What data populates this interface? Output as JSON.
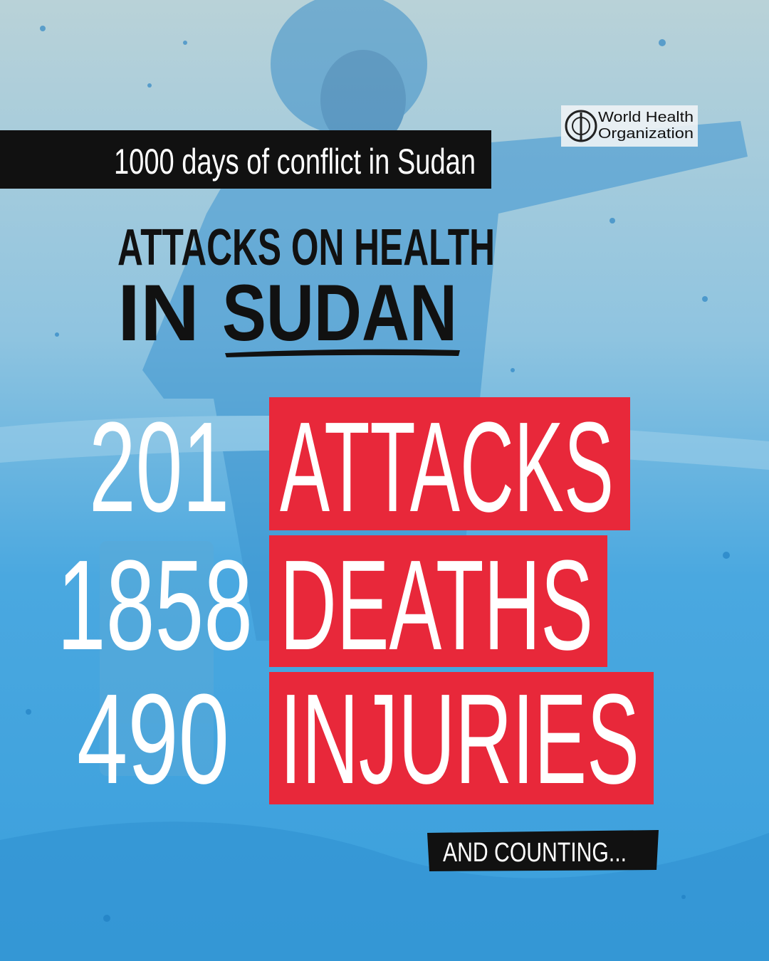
{
  "logo": {
    "line1": "World Health",
    "line2": "Organization"
  },
  "banner": "1000 days of conflict in Sudan",
  "headline": {
    "line1": "ATTACKS ON HEALTH",
    "line2": [
      "IN",
      "SUDAN"
    ]
  },
  "stats": [
    {
      "number": 201,
      "label": "ATTACKS"
    },
    {
      "number": 1858,
      "label": "DEATHS"
    },
    {
      "number": 490,
      "label": "INJURIES"
    }
  ],
  "footer": "AND COUNTING..."
}
